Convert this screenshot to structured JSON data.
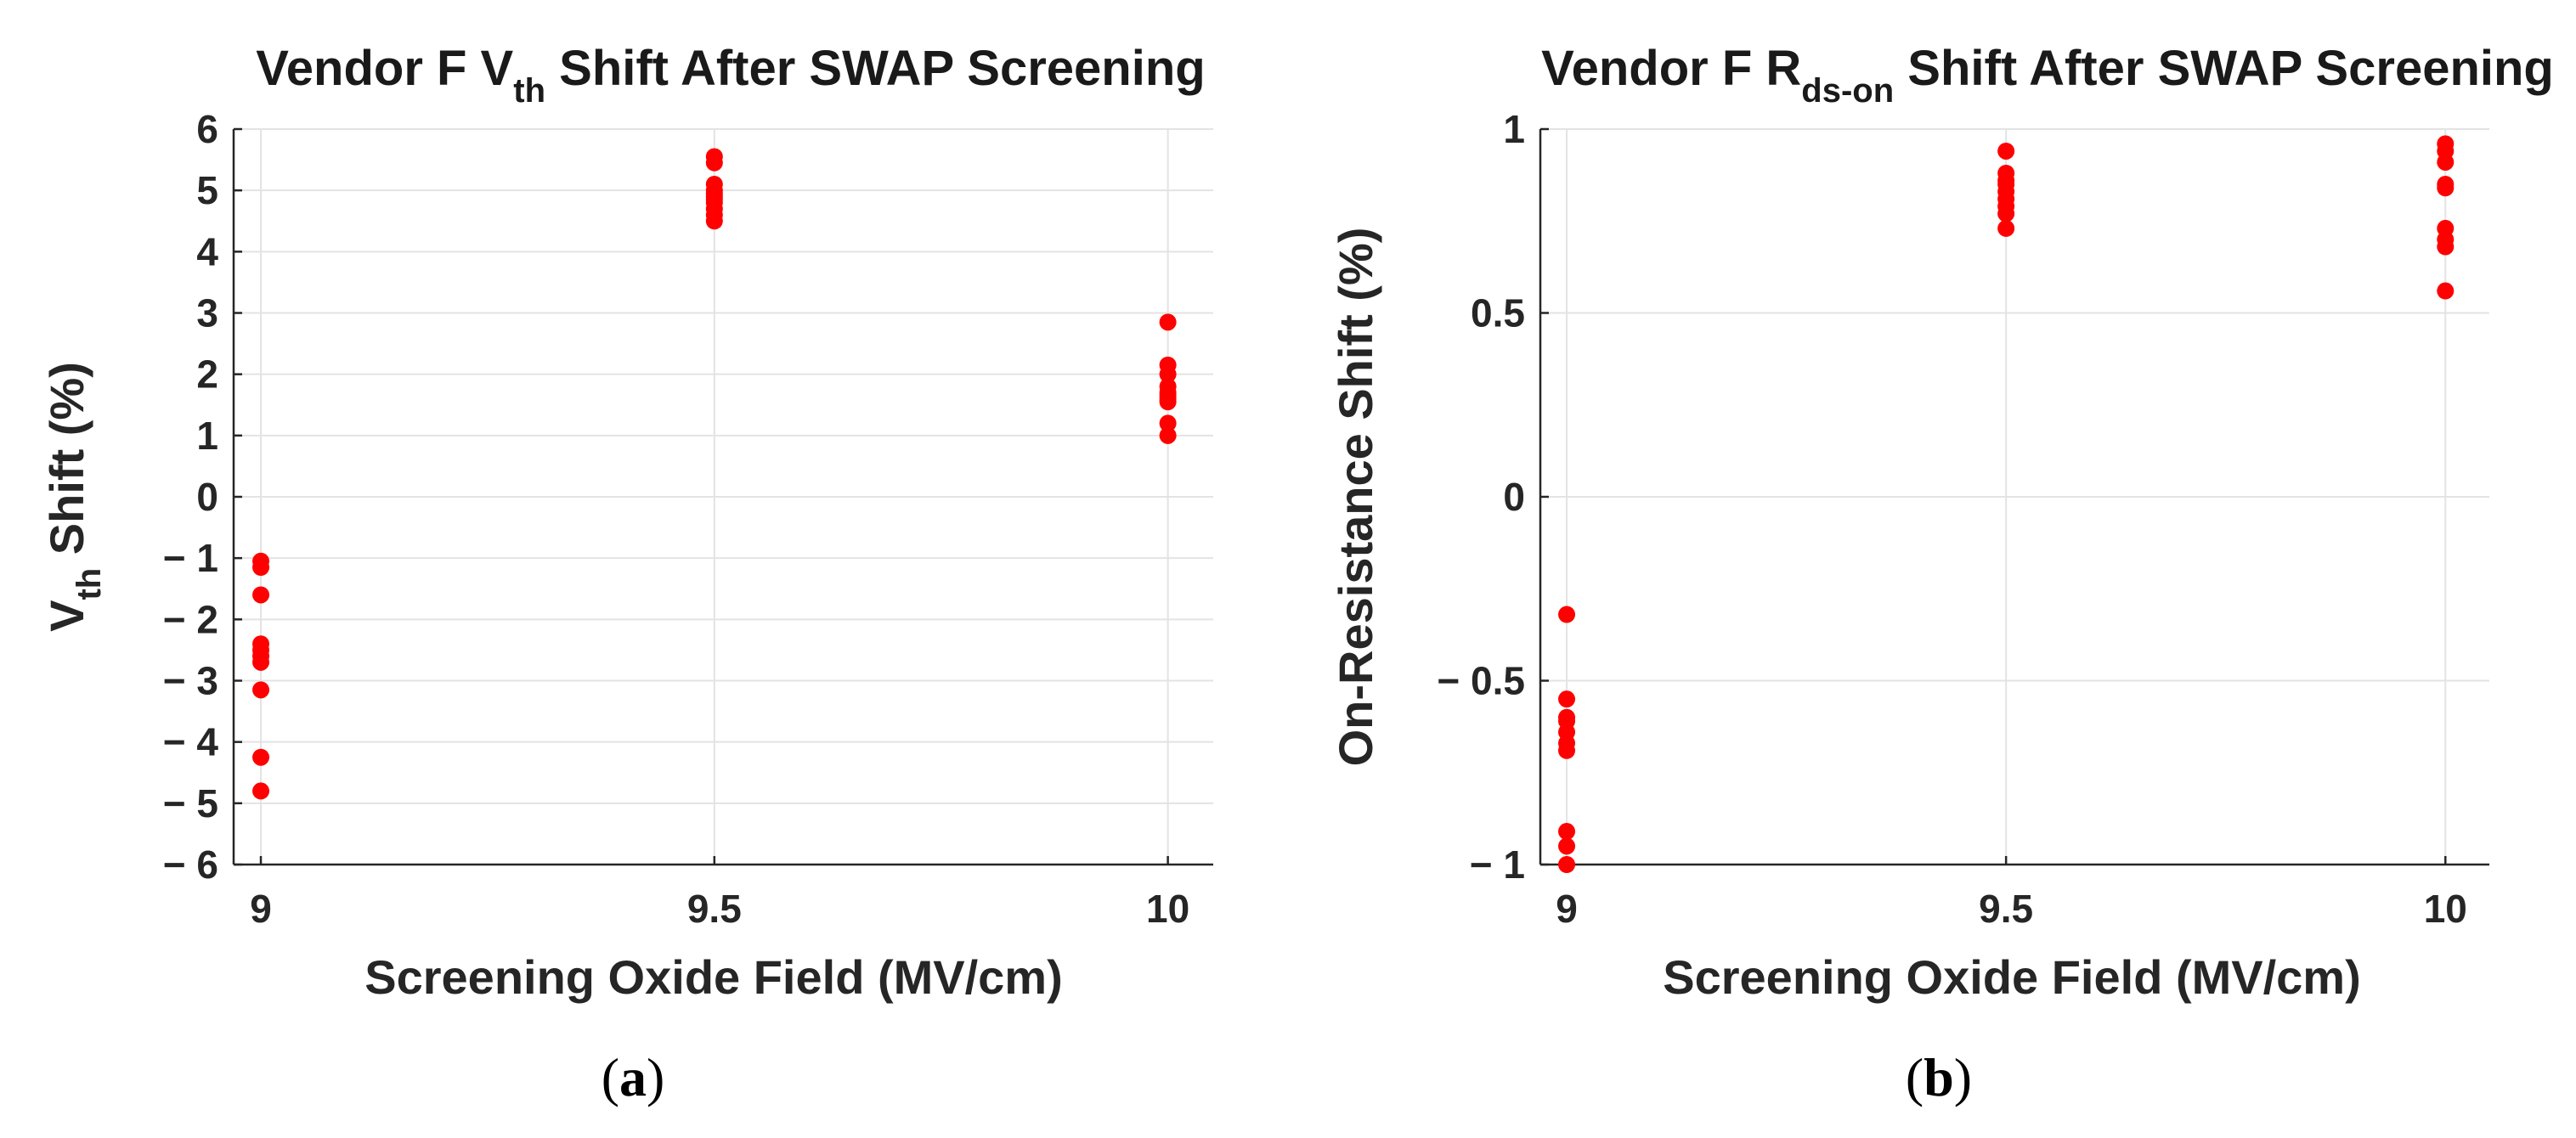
{
  "chart_data": [
    {
      "type": "scatter",
      "id": "a",
      "title_parts": [
        "Vendor F V",
        "th",
        " Shift After SWAP Screening"
      ],
      "title": "Vendor F Vth Shift After SWAP Screening",
      "xlabel": "Screening Oxide Field (MV/cm)",
      "ylabel_parts": [
        "V",
        "th",
        " Shift (%)"
      ],
      "ylabel": "Vth Shift (%)",
      "xlim": [
        8.97,
        10.05
      ],
      "ylim": [
        -6,
        6
      ],
      "x_ticks": [
        9,
        9.5,
        10
      ],
      "x_tick_labels": [
        "9",
        "9.5",
        "10"
      ],
      "y_ticks": [
        6,
        5,
        4,
        3,
        2,
        1,
        0,
        -1,
        -2,
        -3,
        -4,
        -5,
        -6
      ],
      "y_tick_labels": [
        "6",
        "5",
        "4",
        "3",
        "2",
        "1",
        "0",
        "− 1",
        "− 2",
        "− 3",
        "− 4",
        "− 5",
        "− 6"
      ],
      "grid": true,
      "marker_color": "#ff0000",
      "panel_label": [
        "(",
        "a",
        ")"
      ],
      "series": [
        {
          "name": "Vendor F",
          "x": [
            9,
            9,
            9,
            9,
            9,
            9,
            9,
            9,
            9,
            9,
            9.5,
            9.5,
            9.5,
            9.5,
            9.5,
            9.5,
            9.5,
            9.5,
            9.5,
            9.5,
            9.5,
            10,
            10,
            10,
            10,
            10,
            10,
            10,
            10,
            10,
            10
          ],
          "y": [
            -1.05,
            -1.15,
            -1.6,
            -2.4,
            -2.6,
            -2.7,
            -3.15,
            -4.25,
            -4.8,
            -2.5,
            5.55,
            5.45,
            5.1,
            4.95,
            4.85,
            4.8,
            4.7,
            4.6,
            4.5,
            5.0,
            4.9,
            2.85,
            2.15,
            2.0,
            1.8,
            1.7,
            1.6,
            1.55,
            1.2,
            1.0,
            1.65
          ]
        }
      ]
    },
    {
      "type": "scatter",
      "id": "b",
      "title_parts": [
        "Vendor F R",
        "ds-on",
        " Shift After SWAP Screening"
      ],
      "title": "Vendor F Rds-on Shift After SWAP Screening",
      "xlabel": "Screening Oxide Field (MV/cm)",
      "ylabel_parts": [
        "On-Resistance Shift (%)"
      ],
      "ylabel": "On-Resistance Shift (%)",
      "xlim": [
        8.97,
        10.05
      ],
      "ylim": [
        -1,
        1
      ],
      "x_ticks": [
        9,
        9.5,
        10
      ],
      "x_tick_labels": [
        "9",
        "9.5",
        "10"
      ],
      "y_ticks": [
        1,
        0.5,
        0,
        -0.5,
        -1
      ],
      "y_tick_labels": [
        "1",
        "0.5",
        "0",
        "− 0.5",
        "− 1"
      ],
      "grid": true,
      "marker_color": "#ff0000",
      "panel_label": [
        "(",
        "b",
        ")"
      ],
      "series": [
        {
          "name": "Vendor F",
          "x": [
            9,
            9,
            9,
            9,
            9,
            9,
            9,
            9,
            9,
            9,
            9.5,
            9.5,
            9.5,
            9.5,
            9.5,
            9.5,
            9.5,
            9.5,
            9.5,
            10,
            10,
            10,
            10,
            10,
            10,
            10,
            10,
            10
          ],
          "y": [
            -0.32,
            -0.55,
            -0.61,
            -0.64,
            -0.67,
            -0.69,
            -0.91,
            -0.95,
            -1.0,
            -0.6,
            0.94,
            0.88,
            0.86,
            0.83,
            0.81,
            0.79,
            0.77,
            0.73,
            0.85,
            0.96,
            0.94,
            0.91,
            0.85,
            0.84,
            0.73,
            0.7,
            0.68,
            0.56
          ]
        }
      ]
    }
  ]
}
